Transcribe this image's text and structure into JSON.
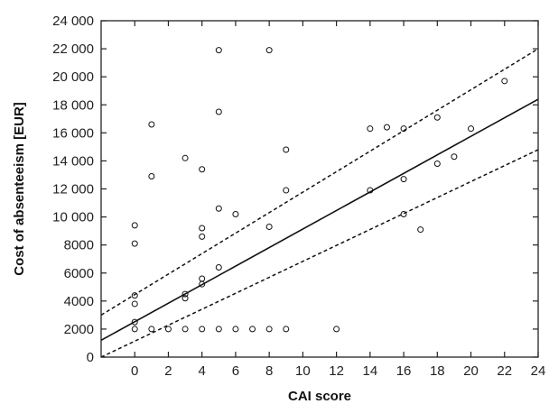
{
  "chart_data": {
    "type": "scatter",
    "xlabel": "CAI score",
    "ylabel": "Cost of absenteeism [EUR]",
    "xlim": [
      -2,
      24
    ],
    "ylim": [
      0,
      24000
    ],
    "x_ticks": [
      0,
      2,
      4,
      6,
      8,
      10,
      12,
      14,
      16,
      18,
      20,
      22,
      24
    ],
    "x_tick_labels": [
      "0",
      "2",
      "4",
      "6",
      "8",
      "10",
      "12",
      "14",
      "16",
      "18",
      "20",
      "22",
      "24"
    ],
    "y_ticks": [
      0,
      2000,
      4000,
      6000,
      8000,
      10000,
      12000,
      14000,
      16000,
      18000,
      20000,
      22000,
      24000
    ],
    "y_tick_labels": [
      "0",
      "2000",
      "4000",
      "6000",
      "8000",
      "10 000",
      "12 000",
      "14 000",
      "16 000",
      "18 000",
      "20 000",
      "22 000",
      "24 000"
    ],
    "grid": false,
    "points": [
      {
        "x": 0,
        "y": 2000
      },
      {
        "x": 0,
        "y": 2500
      },
      {
        "x": 0,
        "y": 3800
      },
      {
        "x": 0,
        "y": 4400
      },
      {
        "x": 0,
        "y": 8100
      },
      {
        "x": 0,
        "y": 9400
      },
      {
        "x": 1,
        "y": 2000
      },
      {
        "x": 1,
        "y": 12900
      },
      {
        "x": 1,
        "y": 16600
      },
      {
        "x": 2,
        "y": 2000
      },
      {
        "x": 3,
        "y": 2000
      },
      {
        "x": 3,
        "y": 4200
      },
      {
        "x": 3,
        "y": 4500
      },
      {
        "x": 3,
        "y": 14200
      },
      {
        "x": 4,
        "y": 2000
      },
      {
        "x": 4,
        "y": 5200
      },
      {
        "x": 4,
        "y": 5600
      },
      {
        "x": 4,
        "y": 8600
      },
      {
        "x": 4,
        "y": 9200
      },
      {
        "x": 4,
        "y": 13400
      },
      {
        "x": 5,
        "y": 2000
      },
      {
        "x": 5,
        "y": 6400
      },
      {
        "x": 5,
        "y": 10600
      },
      {
        "x": 5,
        "y": 17500
      },
      {
        "x": 5,
        "y": 21900
      },
      {
        "x": 6,
        "y": 2000
      },
      {
        "x": 6,
        "y": 10200
      },
      {
        "x": 7,
        "y": 2000
      },
      {
        "x": 8,
        "y": 2000
      },
      {
        "x": 8,
        "y": 9300
      },
      {
        "x": 8,
        "y": 21900
      },
      {
        "x": 9,
        "y": 2000
      },
      {
        "x": 9,
        "y": 11900
      },
      {
        "x": 9,
        "y": 14800
      },
      {
        "x": 12,
        "y": 2000
      },
      {
        "x": 14,
        "y": 11900
      },
      {
        "x": 14,
        "y": 16300
      },
      {
        "x": 15,
        "y": 16400
      },
      {
        "x": 16,
        "y": 10200
      },
      {
        "x": 16,
        "y": 12700
      },
      {
        "x": 16,
        "y": 16300
      },
      {
        "x": 17,
        "y": 9100
      },
      {
        "x": 18,
        "y": 13800
      },
      {
        "x": 18,
        "y": 17100
      },
      {
        "x": 19,
        "y": 14300
      },
      {
        "x": 20,
        "y": 16300
      },
      {
        "x": 22,
        "y": 19700
      }
    ],
    "regression": {
      "type": "line",
      "style": "solid",
      "from": [
        -2,
        1200
      ],
      "to": [
        24,
        18400
      ]
    },
    "confidence_bands": [
      {
        "style": "dashed",
        "bound": "upper",
        "from": [
          -2,
          3000
        ],
        "to": [
          24,
          22000
        ]
      },
      {
        "style": "dashed",
        "bound": "lower",
        "from": [
          -2,
          0
        ],
        "to": [
          24,
          14800
        ]
      }
    ]
  }
}
